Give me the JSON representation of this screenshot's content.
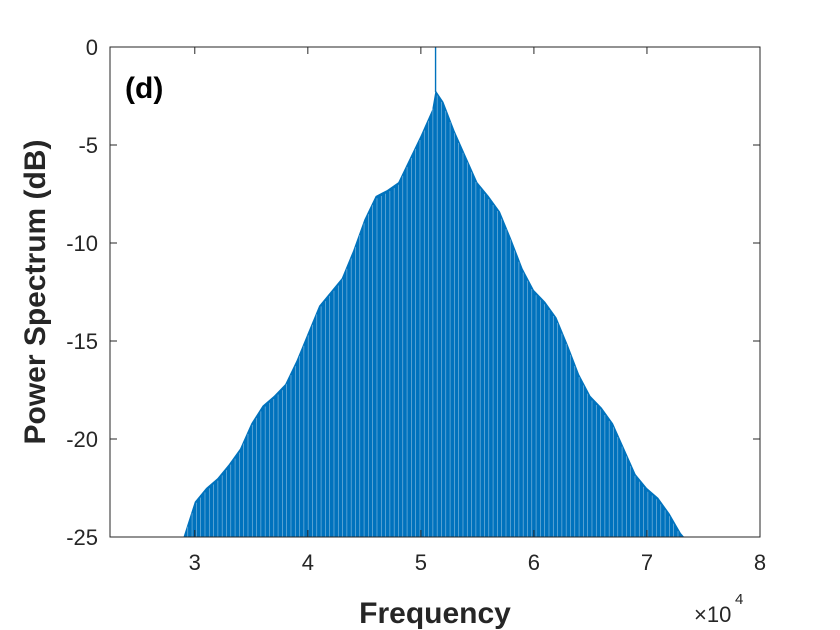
{
  "chart_data": {
    "type": "bar",
    "title": "",
    "panel_label": "(d)",
    "xlabel": "Frequency",
    "ylabel": "Power Spectrum (dB)",
    "x_multiplier": {
      "base": "×10",
      "exponent": "4"
    },
    "xlim": [
      22500,
      80000
    ],
    "ylim": [
      -25,
      0
    ],
    "x_ticks": [
      30000,
      40000,
      50000,
      60000,
      70000,
      80000
    ],
    "x_tick_labels": [
      "3",
      "4",
      "5",
      "6",
      "7",
      "8"
    ],
    "y_ticks": [
      0,
      -5,
      -10,
      -15,
      -20,
      -25
    ],
    "y_tick_labels": [
      "0",
      "-5",
      "-10",
      "-15",
      "-20",
      "-25"
    ],
    "grid": false,
    "bar_color": "#0072BD",
    "series": [
      {
        "envelope_x": [
          29000,
          30000,
          31000,
          32000,
          33000,
          34000,
          35000,
          36000,
          37000,
          38000,
          39000,
          40000,
          41000,
          42000,
          43000,
          44000,
          45000,
          46000,
          47000,
          48000,
          49000,
          50000,
          51000,
          51300,
          52000,
          53000,
          54000,
          55000,
          56000,
          57000,
          58000,
          59000,
          60000,
          61000,
          62000,
          63000,
          64000,
          65000,
          66000,
          67000,
          68000,
          69000,
          70000,
          71000,
          72000,
          73000,
          73300
        ],
        "envelope_y": [
          -25,
          -23.2,
          -22.5,
          -22.0,
          -21.3,
          -20.5,
          -19.2,
          -18.3,
          -17.8,
          -17.2,
          -16.0,
          -14.6,
          -13.2,
          -12.5,
          -11.8,
          -10.4,
          -8.8,
          -7.6,
          -7.3,
          -6.9,
          -5.7,
          -4.5,
          -3.2,
          -2.2,
          -2.8,
          -4.3,
          -5.6,
          -6.9,
          -7.6,
          -8.4,
          -9.8,
          -11.3,
          -12.4,
          -13.0,
          -13.8,
          -15.2,
          -16.7,
          -17.8,
          -18.4,
          -19.2,
          -20.5,
          -21.8,
          -22.5,
          -23.0,
          -23.8,
          -24.8,
          -25
        ],
        "spike": {
          "x": 51300,
          "y": 0
        }
      }
    ]
  }
}
